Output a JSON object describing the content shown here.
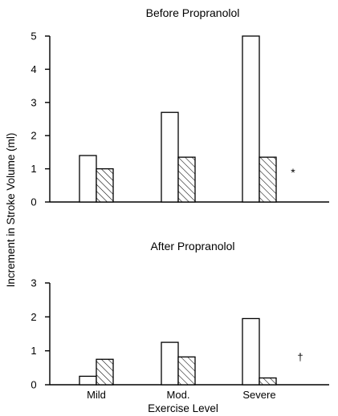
{
  "chart_data": [
    {
      "type": "bar",
      "title": "Before Propranolol",
      "categories": [
        "Mild",
        "Mod.",
        "Severe"
      ],
      "series": [
        {
          "values": [
            1.4,
            2.7,
            5.0
          ],
          "fill": "open"
        },
        {
          "values": [
            1.0,
            1.35,
            1.35
          ],
          "fill": "hatched"
        }
      ],
      "ylim": [
        0,
        5
      ],
      "yticks": [
        "0",
        "1",
        "2",
        "3",
        "4",
        "5"
      ],
      "annotation": "*",
      "grid": false
    },
    {
      "type": "bar",
      "title": "After Propranolol",
      "categories": [
        "Mild",
        "Mod.",
        "Severe"
      ],
      "series": [
        {
          "values": [
            0.25,
            1.25,
            1.95
          ],
          "fill": "open"
        },
        {
          "values": [
            0.75,
            0.82,
            0.2
          ],
          "fill": "hatched"
        }
      ],
      "ylim": [
        0,
        3
      ],
      "yticks": [
        "0",
        "1",
        "2",
        "3"
      ],
      "annotation": "†",
      "grid": false
    }
  ],
  "ylabel": "Increment in Stroke Volume (ml)",
  "xlabel": "Exercise Level",
  "xticks": [
    "Mild",
    "Mod.",
    "Severe"
  ]
}
